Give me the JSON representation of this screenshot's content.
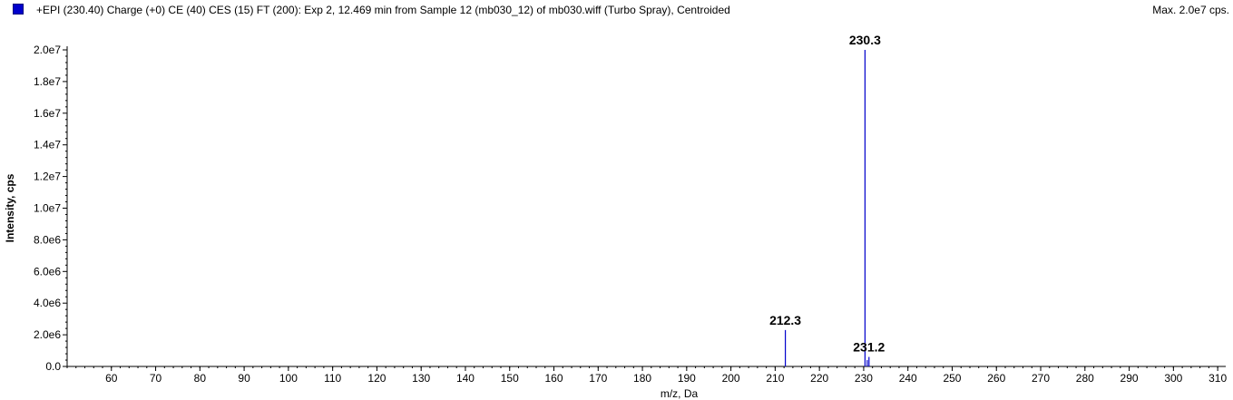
{
  "header": {
    "title": "+EPI (230.40) Charge (+0) CE (40) CES (15) FT (200): Exp 2, 12.469 min from Sample 12 (mb030_12) of mb030.wiff (Turbo Spray), Centroided",
    "max_label": "Max. 2.0e7 cps.",
    "legend_color": "#0000cc"
  },
  "chart_data": {
    "type": "bar",
    "title": "+EPI (230.40) Charge (+0) CE (40) CES (15) FT (200): Exp 2, 12.469 min from Sample 12 (mb030_12) of mb030.wiff (Turbo Spray), Centroided",
    "xlabel": "m/z, Da",
    "ylabel": "Intensity, cps",
    "xlim": [
      50,
      311
    ],
    "ylim": [
      0,
      20000000
    ],
    "x_ticks": [
      60,
      70,
      80,
      90,
      100,
      110,
      120,
      130,
      140,
      150,
      160,
      170,
      180,
      190,
      200,
      210,
      220,
      230,
      240,
      250,
      260,
      270,
      280,
      290,
      300,
      310
    ],
    "y_ticks": [
      {
        "value": 0,
        "label": "0.0"
      },
      {
        "value": 2000000,
        "label": "2.0e6"
      },
      {
        "value": 4000000,
        "label": "4.0e6"
      },
      {
        "value": 6000000,
        "label": "6.0e6"
      },
      {
        "value": 8000000,
        "label": "8.0e6"
      },
      {
        "value": 10000000,
        "label": "1.0e7"
      },
      {
        "value": 12000000,
        "label": "1.2e7"
      },
      {
        "value": 14000000,
        "label": "1.4e7"
      },
      {
        "value": 16000000,
        "label": "1.6e7"
      },
      {
        "value": 18000000,
        "label": "1.8e7"
      },
      {
        "value": 20000000,
        "label": "2.0e7"
      }
    ],
    "series": [
      {
        "color": "#0000cc",
        "peaks": [
          {
            "x": 212.3,
            "y": 2300000,
            "label": "212.3"
          },
          {
            "x": 230.3,
            "y": 20000000,
            "label": "230.3"
          },
          {
            "x": 230.8,
            "y": 400000
          },
          {
            "x": 231.2,
            "y": 600000,
            "label": "231.2"
          }
        ]
      }
    ],
    "grid": false
  }
}
